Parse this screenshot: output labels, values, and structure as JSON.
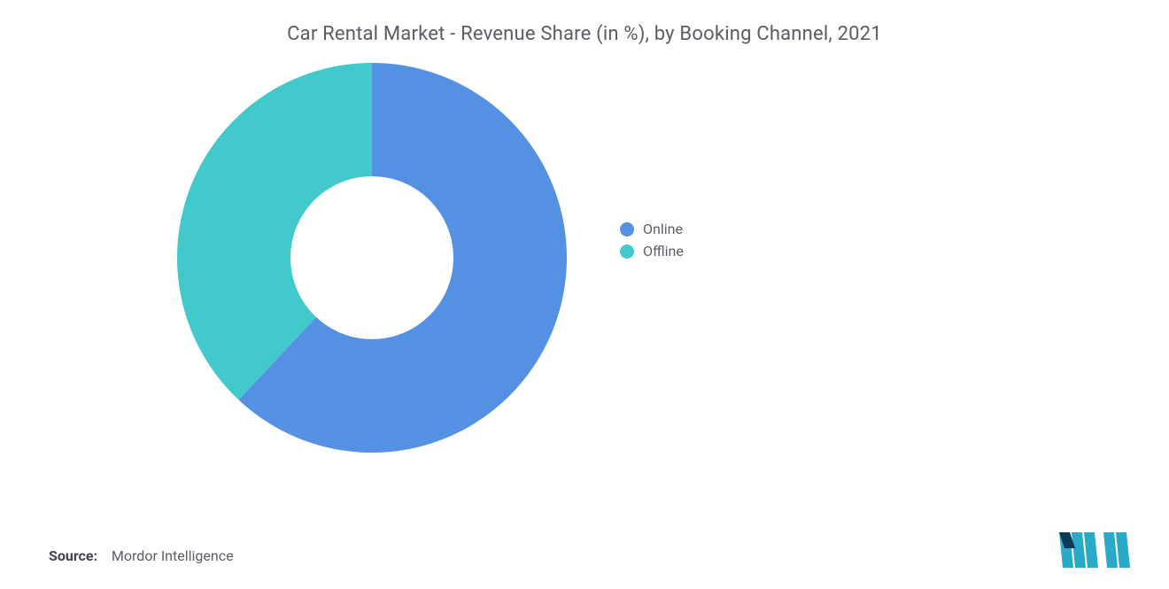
{
  "chart": {
    "type": "donut",
    "title": "Car Rental Market - Revenue Share (in %), by Booking Channel, 2021",
    "title_fontsize": 22,
    "title_color": "#5c5c66",
    "background_color": "#ffffff",
    "donut": {
      "outer_radius": 220,
      "inner_radius": 92,
      "center_fill": "#ffffff",
      "start_angle_deg": -90,
      "direction": "clockwise"
    },
    "slices": [
      {
        "label": "Online",
        "value": 62,
        "color": "#5591e3"
      },
      {
        "label": "Offline",
        "value": 38,
        "color": "#41c9cc"
      }
    ],
    "legend": {
      "position": "right",
      "marker_shape": "circle",
      "marker_size": 16,
      "fontsize": 16,
      "text_color": "#5c5c66"
    }
  },
  "source": {
    "label": "Source:",
    "value": "Mordor Intelligence"
  },
  "brandmark": {
    "bar_color": "#2aa9c9",
    "accent_color": "#0a3a5a"
  }
}
